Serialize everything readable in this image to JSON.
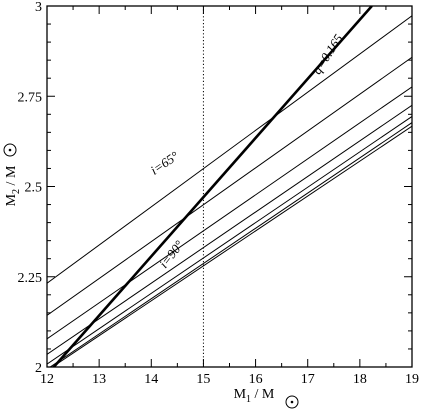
{
  "chart_data": {
    "type": "line",
    "xlim": [
      12,
      19
    ],
    "ylim": [
      2,
      3
    ],
    "xticks": [
      "12",
      "13",
      "14",
      "15",
      "16",
      "17",
      "18",
      "19"
    ],
    "yticks": [
      "2",
      "2.25",
      "2.5",
      "2.75",
      "3"
    ],
    "xlabel": {
      "main": "M",
      "sub": "1",
      "tail": " / M"
    },
    "ylabel": {
      "main": "M",
      "sub": "2",
      "tail": " / M"
    },
    "grid": false,
    "series": [
      {
        "kind": "inclination",
        "x": [
          12,
          19
        ],
        "y": [
          2.232,
          2.973
        ]
      },
      {
        "kind": "inclination",
        "x": [
          12,
          19
        ],
        "y": [
          2.143,
          2.858
        ]
      },
      {
        "kind": "inclination",
        "x": [
          12,
          19
        ],
        "y": [
          2.078,
          2.776
        ]
      },
      {
        "kind": "inclination",
        "x": [
          12,
          19
        ],
        "y": [
          2.035,
          2.725
        ]
      },
      {
        "kind": "inclination",
        "x": [
          12,
          19
        ],
        "y": [
          2.008,
          2.694
        ]
      },
      {
        "kind": "inclination",
        "x": [
          12,
          19
        ],
        "y": [
          1.994,
          2.677
        ]
      },
      {
        "kind": "inclination",
        "x": [
          12,
          19
        ],
        "y": [
          1.99,
          2.667
        ]
      },
      {
        "kind": "mass-ratio",
        "x": [
          12.1,
          18.23
        ],
        "y": [
          1.995,
          3.0
        ]
      }
    ],
    "reference_line": {
      "x": 15
    },
    "annotations": [
      {
        "text": "i=65°",
        "x": 14.3,
        "y": 2.555,
        "angle": -34
      },
      {
        "text": "i=90°",
        "x": 14.45,
        "y": 2.305,
        "angle": -52
      },
      {
        "text": "q=0.165",
        "x": 17.45,
        "y": 2.86,
        "angle": -57
      }
    ]
  }
}
